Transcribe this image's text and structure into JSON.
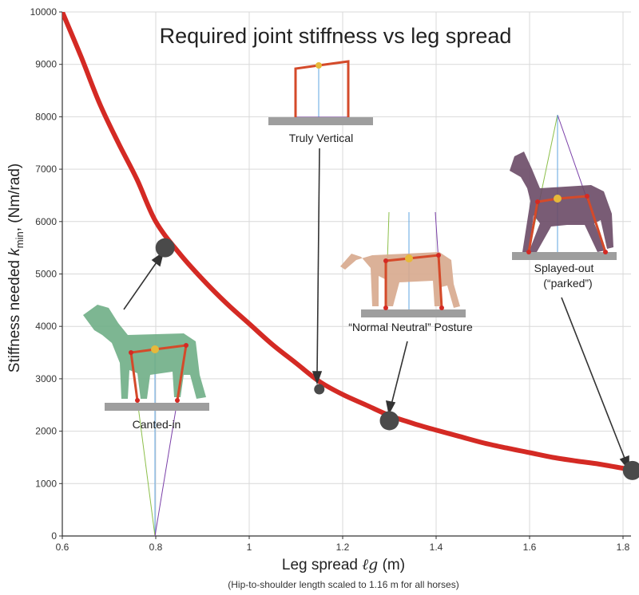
{
  "chart_data": {
    "type": "line",
    "title": "Required joint stiffness vs leg spread",
    "xlabel_prefix": "Leg spread ",
    "xlabel_symbol": "ℓg",
    "xlabel_unit": " (m)",
    "ylabel": "Stiffness needed k_min, (Nm/rad)",
    "ylabel_prefix": "Stiffness needed ",
    "ylabel_symbol": "k",
    "ylabel_sub": "min",
    "ylabel_suffix": ", (Nm/rad)",
    "footnote": "(Hip-to-shoulder length scaled to 1.16 m for all horses)",
    "xlim": [
      0.6,
      1.82
    ],
    "ylim": [
      0,
      10000
    ],
    "x_ticks": [
      0.6,
      0.8,
      1,
      1.2,
      1.4,
      1.6,
      1.8
    ],
    "x_tick_labels": [
      "0.6",
      "0.8",
      "1",
      "1.2",
      "1.4",
      "1.6",
      "1.8"
    ],
    "y_ticks": [
      0,
      1000,
      2000,
      3000,
      4000,
      5000,
      6000,
      7000,
      8000,
      9000,
      10000
    ],
    "y_tick_labels": [
      "0",
      "1000",
      "2000",
      "3000",
      "4000",
      "5000",
      "6000",
      "7000",
      "8000",
      "9000",
      "10000"
    ],
    "grid": true,
    "series": [
      {
        "x": [
          0.6,
          0.64,
          0.68,
          0.72,
          0.76,
          0.8,
          0.85,
          0.9,
          0.95,
          1.0,
          1.05,
          1.1,
          1.15,
          1.2,
          1.25,
          1.3,
          1.35,
          1.4,
          1.45,
          1.5,
          1.55,
          1.6,
          1.65,
          1.7,
          1.75,
          1.82
        ],
        "y": [
          10000,
          9150,
          8250,
          7500,
          6800,
          6000,
          5400,
          4900,
          4450,
          4050,
          3650,
          3300,
          2950,
          2700,
          2500,
          2300,
          2150,
          2020,
          1900,
          1780,
          1680,
          1590,
          1500,
          1430,
          1370,
          1260
        ]
      }
    ],
    "points": [
      {
        "label": "Canted-in",
        "x": 0.82,
        "y": 5500,
        "large": true
      },
      {
        "label": "Truly Vertical",
        "x": 1.15,
        "y": 2800,
        "large": false
      },
      {
        "label": "“Normal Neutral” Posture",
        "x": 1.3,
        "y": 2200,
        "large": true
      },
      {
        "label": "Splayed-out",
        "label2": "(“parked”)",
        "x": 1.82,
        "y": 1250,
        "large": true
      }
    ],
    "colors": {
      "curve": "#d42a24",
      "point": "#4a4a4a",
      "grid": "#d9d9d9",
      "frame": "#5fa5e0",
      "horse_green": "#6fae86",
      "horse_tan": "#d7a98d",
      "horse_bay": "#6a4a66"
    }
  }
}
